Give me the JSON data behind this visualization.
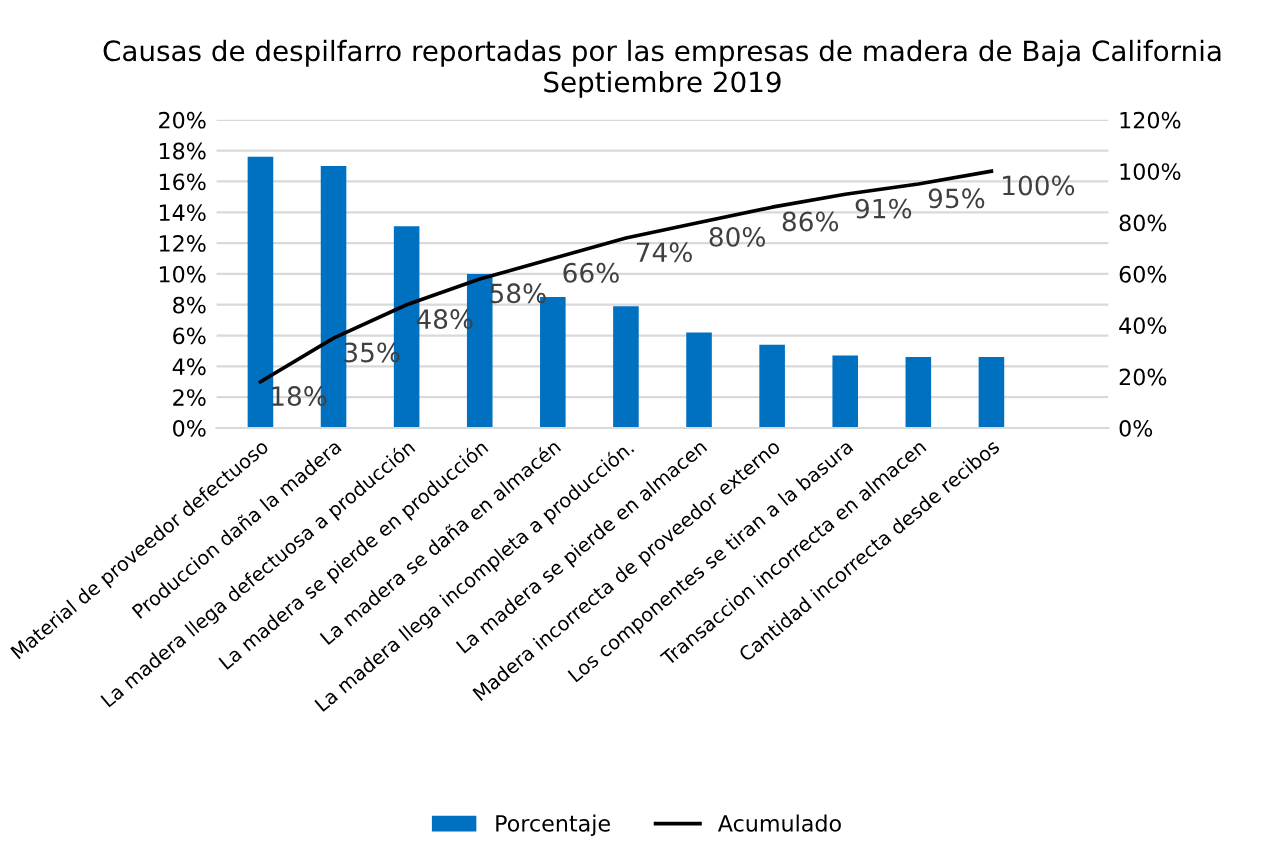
{
  "chart_data": {
    "type": "bar",
    "title": "Causas de despilfarro reportadas por las empresas de madera de Baja California\nSeptiembre 2019",
    "categories": [
      "Material de proveedor defectuoso",
      "Produccion daña la madera",
      "La madera llega defectuosa a producción",
      "La madera se pierde en producción",
      "La madera se daña en almacén",
      "La madera llega incompleta a producción.",
      "La madera se pierde en almacen",
      "Madera incorrecta de proveedor externo",
      "Los componentes se tiran a la basura",
      "Transaccion incorrecta en almacen",
      "Cantidad incorrecta desde recibos"
    ],
    "series": [
      {
        "name": "Porcentaje",
        "color": "#0070c0",
        "values": [
          17.6,
          17.0,
          13.1,
          10.0,
          8.5,
          7.9,
          6.2,
          5.4,
          4.7,
          4.6,
          4.6
        ]
      },
      {
        "name": "Acumulado",
        "type": "line",
        "axis": "y2",
        "color": "#000000",
        "values": [
          18,
          35,
          48,
          58,
          66,
          74,
          80,
          86,
          91,
          95,
          100
        ],
        "value_labels": [
          "18%",
          "35%",
          "48%",
          "58%",
          "66%",
          "74%",
          "80%",
          "86%",
          "91%",
          "95%",
          "100%"
        ]
      }
    ],
    "ylim": [
      0,
      20
    ],
    "yticks": [
      {
        "value": 0,
        "label": "0%"
      },
      {
        "value": 2,
        "label": "2%"
      },
      {
        "value": 4,
        "label": "4%"
      },
      {
        "value": 6,
        "label": "6%"
      },
      {
        "value": 8,
        "label": "8%"
      },
      {
        "value": 10,
        "label": "10%"
      },
      {
        "value": 12,
        "label": "12%"
      },
      {
        "value": 14,
        "label": "14%"
      },
      {
        "value": 16,
        "label": "16%"
      },
      {
        "value": 18,
        "label": "18%"
      },
      {
        "value": 20,
        "label": "20%"
      }
    ],
    "y2lim": [
      0,
      120
    ],
    "y2ticks": [
      {
        "value": 0,
        "label": "0%"
      },
      {
        "value": 20,
        "label": "20%"
      },
      {
        "value": 40,
        "label": "40%"
      },
      {
        "value": 60,
        "label": "60%"
      },
      {
        "value": 80,
        "label": "80%"
      },
      {
        "value": 100,
        "label": "100%"
      },
      {
        "value": 120,
        "label": "120%"
      }
    ],
    "grid": "y",
    "legend": "bottom",
    "marker": "none",
    "line_style": "solid"
  }
}
